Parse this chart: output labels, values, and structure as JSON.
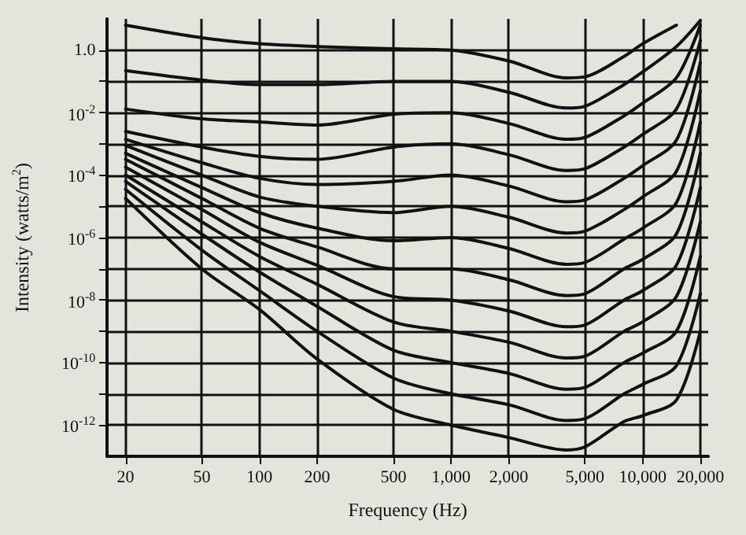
{
  "chart_data": {
    "type": "line",
    "xlabel": "Frequency (Hz)",
    "ylabel": "Intensity (watts/m$^{2}$)",
    "log": "xy",
    "grid": true,
    "marker": "none",
    "xlim": [
      16,
      22000
    ],
    "ylim": [
      1e-13,
      10
    ],
    "xticks": [
      20,
      50,
      100,
      200,
      500,
      {
        "value": 1000,
        "label": "1,000"
      },
      {
        "value": 2000,
        "label": "2,000"
      },
      {
        "value": 5000,
        "label": "5,000"
      },
      {
        "value": 10000,
        "label": "10,000"
      },
      {
        "value": 20000,
        "label": "20,000"
      }
    ],
    "yticks": [
      {
        "value": 1e-12,
        "label": "10$^{-12}$"
      },
      {
        "value": 1e-11,
        "label": null
      },
      {
        "value": 1e-10,
        "label": "10$^{-10}$"
      },
      {
        "value": 1e-09,
        "label": null
      },
      {
        "value": 1e-08,
        "label": "10$^{-8}$"
      },
      {
        "value": 1e-07,
        "label": null
      },
      {
        "value": 1e-06,
        "label": "10$^{-6}$"
      },
      {
        "value": 1e-05,
        "label": null
      },
      {
        "value": 0.0001,
        "label": "10$^{-4}$"
      },
      {
        "value": 0.001,
        "label": null
      },
      {
        "value": 0.01,
        "label": "10$^{-2}$"
      },
      {
        "value": 0.1,
        "label": null
      },
      {
        "value": 1,
        "label": "1.0"
      }
    ],
    "x": [
      20,
      50,
      100,
      200,
      500,
      1000,
      2000,
      4000,
      5000,
      8000,
      10000,
      15000,
      20000
    ],
    "series": [
      {
        "color": "#111111",
        "values": [
          1.8e-05,
          1e-07,
          5e-09,
          1.3e-10,
          3.2e-12,
          1e-12,
          4e-13,
          1.6e-13,
          2e-13,
          1.3e-12,
          2e-12,
          6.3e-12,
          1e-09
        ]
      },
      {
        "color": "#111111",
        "values": [
          3.5e-05,
          4e-07,
          2e-08,
          1e-09,
          3.2e-11,
          1e-11,
          4.5e-12,
          1.4e-12,
          1.6e-12,
          1e-11,
          2e-11,
          7.9e-11,
          1.6e-08
        ]
      },
      {
        "color": "#111111",
        "values": [
          6.3e-05,
          1.3e-06,
          7.9e-08,
          6.3e-09,
          2.5e-10,
          1e-10,
          4.5e-11,
          1.4e-11,
          1.6e-11,
          1e-10,
          2e-10,
          1e-09,
          2.5e-07
        ]
      },
      {
        "color": "#111111",
        "values": [
          0.0001,
          3.2e-06,
          2.5e-07,
          3.2e-08,
          2e-09,
          1e-09,
          4.5e-10,
          1.4e-10,
          1.6e-10,
          1e-09,
          2e-09,
          1.3e-08,
          3.2e-06
        ]
      },
      {
        "color": "#111111",
        "values": [
          0.00018,
          7.9e-06,
          7.1e-07,
          1.3e-07,
          1.3e-08,
          1e-08,
          4.5e-09,
          1.4e-09,
          1.6e-09,
          1e-08,
          2e-08,
          1.3e-07,
          4e-05
        ]
      },
      {
        "color": "#111111",
        "values": [
          0.00032,
          1.8e-05,
          2e-06,
          5e-07,
          1e-07,
          1e-07,
          4.5e-08,
          1.4e-08,
          1.6e-08,
          1e-07,
          2e-07,
          1.3e-06,
          0.0005
        ]
      },
      {
        "color": "#111111",
        "values": [
          0.0005,
          4e-05,
          6.3e-06,
          2e-06,
          7.9e-07,
          1e-06,
          4.5e-07,
          1.4e-07,
          1.6e-07,
          8.9e-07,
          2e-06,
          1.3e-05,
          0.005
        ]
      },
      {
        "color": "#111111",
        "values": [
          0.00089,
          0.0001,
          2e-05,
          1e-05,
          6.3e-06,
          1e-05,
          4.5e-06,
          1.4e-06,
          1.6e-06,
          7.9e-06,
          2e-05,
          0.00013,
          0.05
        ]
      },
      {
        "color": "#111111",
        "values": [
          0.0014,
          0.00025,
          7.9e-05,
          5e-05,
          6.3e-05,
          0.0001,
          4.5e-05,
          1.4e-05,
          1.6e-05,
          7.9e-05,
          0.0002,
          0.0013,
          0.4
        ]
      },
      {
        "color": "#111111",
        "values": [
          0.0025,
          0.00079,
          0.0004,
          0.00032,
          0.00079,
          0.001,
          0.00045,
          0.00014,
          0.00016,
          0.00079,
          0.002,
          0.013,
          2.0
        ]
      },
      {
        "color": "#111111",
        "values": [
          0.013,
          0.0063,
          0.005,
          0.004,
          0.0089,
          0.01,
          0.0045,
          0.0014,
          0.0016,
          0.0079,
          0.02,
          0.13,
          6.3
        ]
      },
      {
        "color": "#111111",
        "values": [
          0.22,
          0.11,
          0.079,
          0.079,
          0.1,
          0.1,
          0.045,
          0.014,
          0.016,
          0.079,
          0.2,
          1.3,
          8.9
        ]
      },
      {
        "color": "#111111",
        "values": [
          6.3,
          2.5,
          1.6,
          1.3,
          1.1,
          1,
          0.45,
          0.13,
          0.14,
          0.63,
          1.6,
          6.3,
          null
        ]
      }
    ]
  }
}
